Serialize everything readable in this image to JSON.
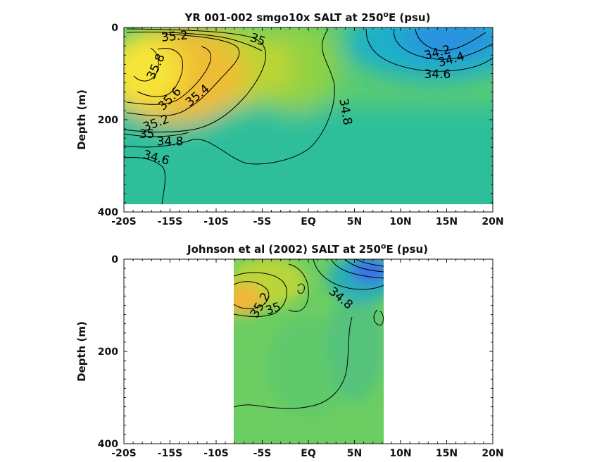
{
  "chart_data": [
    {
      "type": "heatmap",
      "title_prefix": "YR 001-002 smgo10x SALT at 250",
      "title_sup": "o",
      "title_suffix": "E (psu)",
      "ylabel": "Depth (m)",
      "xlabel": "",
      "xlim": [
        -20,
        20
      ],
      "ylim": [
        400,
        0
      ],
      "x_ticks": [
        {
          "value": -20,
          "label": "-20S"
        },
        {
          "value": -15,
          "label": "-15S"
        },
        {
          "value": -10,
          "label": "-10S"
        },
        {
          "value": -5,
          "label": "-5S"
        },
        {
          "value": 0,
          "label": "EQ"
        },
        {
          "value": 5,
          "label": "5N"
        },
        {
          "value": 10,
          "label": "10N"
        },
        {
          "value": 15,
          "label": "15N"
        },
        {
          "value": 20,
          "label": "20N"
        }
      ],
      "y_ticks": [
        {
          "value": 0,
          "label": "0"
        },
        {
          "value": 200,
          "label": "200"
        },
        {
          "value": 400,
          "label": "400"
        }
      ],
      "data_extent": {
        "x": [
          -20,
          20
        ],
        "depth": [
          0,
          380
        ]
      },
      "contour_labels": [
        {
          "text": "35.2",
          "x": -14.5,
          "depth": 20,
          "angle": -5
        },
        {
          "text": "35",
          "x": -5.5,
          "depth": 27,
          "angle": 20
        },
        {
          "text": "35.8",
          "x": -16.5,
          "depth": 85,
          "angle": -65
        },
        {
          "text": "35.6",
          "x": -15,
          "depth": 155,
          "angle": -45
        },
        {
          "text": "35.4",
          "x": -12,
          "depth": 148,
          "angle": -40
        },
        {
          "text": "35.2",
          "x": -16.5,
          "depth": 208,
          "angle": -20
        },
        {
          "text": "35",
          "x": -17.5,
          "depth": 232,
          "angle": 0
        },
        {
          "text": "34.8",
          "x": -15,
          "depth": 248,
          "angle": 0
        },
        {
          "text": "34.6",
          "x": -16.5,
          "depth": 283,
          "angle": 15
        },
        {
          "text": "34.8",
          "x": 4,
          "depth": 183,
          "angle": 80
        },
        {
          "text": "34.2",
          "x": 14,
          "depth": 55,
          "angle": -15
        },
        {
          "text": "34.4",
          "x": 15.5,
          "depth": 70,
          "angle": -15
        },
        {
          "text": "34.6",
          "x": 14,
          "depth": 102,
          "angle": 0
        }
      ]
    },
    {
      "type": "heatmap",
      "title_prefix": "Johnson et al (2002) SALT at 250",
      "title_sup": "o",
      "title_suffix": "E (psu)",
      "ylabel": "Depth (m)",
      "xlabel": "",
      "xlim": [
        -20,
        20
      ],
      "ylim": [
        400,
        0
      ],
      "x_ticks": [
        {
          "value": -20,
          "label": "-20S"
        },
        {
          "value": -15,
          "label": "-15S"
        },
        {
          "value": -10,
          "label": "-10S"
        },
        {
          "value": -5,
          "label": "-5S"
        },
        {
          "value": 0,
          "label": "EQ"
        },
        {
          "value": 5,
          "label": "5N"
        },
        {
          "value": 10,
          "label": "10N"
        },
        {
          "value": 15,
          "label": "15N"
        },
        {
          "value": 20,
          "label": "20N"
        }
      ],
      "y_ticks": [
        {
          "value": 0,
          "label": "0"
        },
        {
          "value": 200,
          "label": "200"
        },
        {
          "value": 400,
          "label": "400"
        }
      ],
      "data_extent": {
        "x": [
          -8,
          8.3
        ],
        "depth": [
          0,
          400
        ]
      },
      "contour_labels": [
        {
          "text": "35.2",
          "x": -5.2,
          "depth": 100,
          "angle": -60
        },
        {
          "text": "35",
          "x": -3.8,
          "depth": 108,
          "angle": -20
        },
        {
          "text": "34.8",
          "x": 3.5,
          "depth": 85,
          "angle": 40
        }
      ]
    }
  ],
  "colors": {
    "axis": "#111111",
    "salt_low": "#3b6fe8",
    "salt_mid": "#2fbf9a",
    "salt_green": "#6ccf65",
    "salt_high": "#f4b83b",
    "salt_max": "#f6e83a"
  }
}
